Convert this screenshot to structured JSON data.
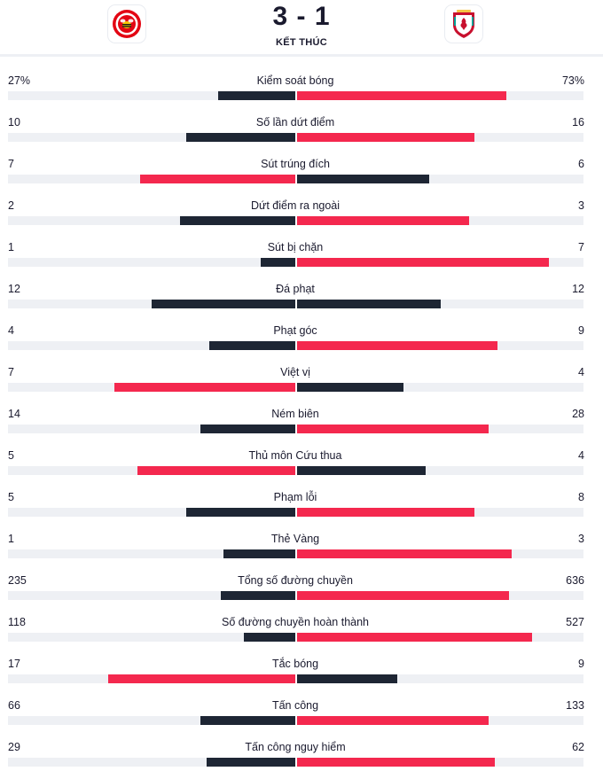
{
  "match": {
    "score": "3 - 1",
    "status": "KẾT THÚC",
    "home_crest": "brentford-crest-icon",
    "away_crest": "liverpool-crest-icon"
  },
  "colors": {
    "dark": "#1e2634",
    "red": "#f4284e",
    "track": "#eef0f4"
  },
  "stats": [
    {
      "label": "Kiểm soát bóng",
      "home": "27%",
      "away": "73%",
      "home_frac": 0.27,
      "away_frac": 0.73,
      "leader": "away"
    },
    {
      "label": "Số lần dứt điểm",
      "home": "10",
      "away": "16",
      "home_frac": 0.38,
      "away_frac": 0.62,
      "leader": "away"
    },
    {
      "label": "Sút trúng đích",
      "home": "7",
      "away": "6",
      "home_frac": 0.54,
      "away_frac": 0.46,
      "leader": "home"
    },
    {
      "label": "Dứt điểm ra ngoài",
      "home": "2",
      "away": "3",
      "home_frac": 0.4,
      "away_frac": 0.6,
      "leader": "away"
    },
    {
      "label": "Sút bị chặn",
      "home": "1",
      "away": "7",
      "home_frac": 0.12,
      "away_frac": 0.88,
      "leader": "away"
    },
    {
      "label": "Đá phạt",
      "home": "12",
      "away": "12",
      "home_frac": 0.5,
      "away_frac": 0.5,
      "leader": "none"
    },
    {
      "label": "Phạt góc",
      "home": "4",
      "away": "9",
      "home_frac": 0.3,
      "away_frac": 0.7,
      "leader": "away"
    },
    {
      "label": "Việt vị",
      "home": "7",
      "away": "4",
      "home_frac": 0.63,
      "away_frac": 0.37,
      "leader": "home"
    },
    {
      "label": "Ném biên",
      "home": "14",
      "away": "28",
      "home_frac": 0.33,
      "away_frac": 0.67,
      "leader": "away"
    },
    {
      "label": "Thủ môn Cứu thua",
      "home": "5",
      "away": "4",
      "home_frac": 0.55,
      "away_frac": 0.45,
      "leader": "home"
    },
    {
      "label": "Phạm lỗi",
      "home": "5",
      "away": "8",
      "home_frac": 0.38,
      "away_frac": 0.62,
      "leader": "away"
    },
    {
      "label": "Thẻ Vàng",
      "home": "1",
      "away": "3",
      "home_frac": 0.25,
      "away_frac": 0.75,
      "leader": "away"
    },
    {
      "label": "Tổng số đường chuyền",
      "home": "235",
      "away": "636",
      "home_frac": 0.26,
      "away_frac": 0.74,
      "leader": "away"
    },
    {
      "label": "Số đường chuyền hoàn thành",
      "home": "118",
      "away": "527",
      "home_frac": 0.18,
      "away_frac": 0.82,
      "leader": "away"
    },
    {
      "label": "Tắc bóng",
      "home": "17",
      "away": "9",
      "home_frac": 0.65,
      "away_frac": 0.35,
      "leader": "home"
    },
    {
      "label": "Tấn công",
      "home": "66",
      "away": "133",
      "home_frac": 0.33,
      "away_frac": 0.67,
      "leader": "away"
    },
    {
      "label": "Tấn công nguy hiểm",
      "home": "29",
      "away": "62",
      "home_frac": 0.31,
      "away_frac": 0.69,
      "leader": "away"
    }
  ]
}
